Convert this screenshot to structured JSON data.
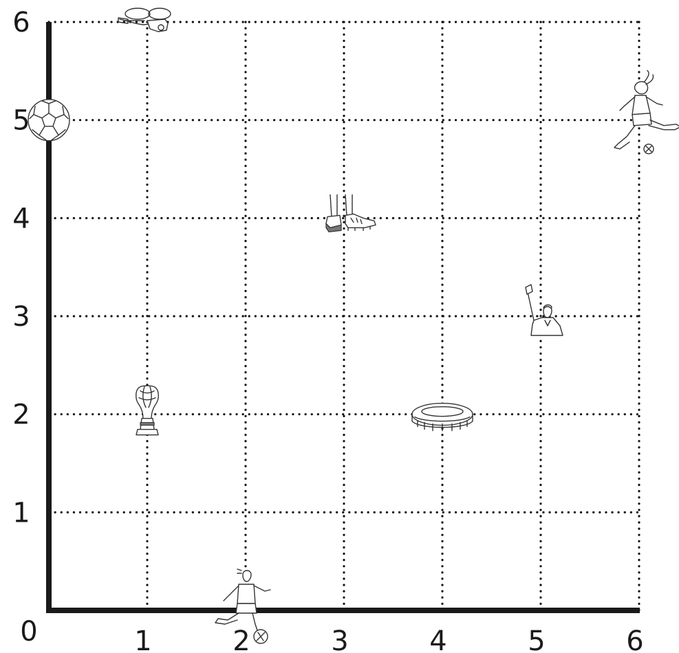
{
  "chart_data": {
    "type": "scatter",
    "title": "",
    "xlabel": "",
    "ylabel": "",
    "xlim": [
      0,
      6
    ],
    "ylim": [
      0,
      6
    ],
    "grid": true,
    "grid_style": "dotted",
    "x_ticks": [
      "0",
      "1",
      "2",
      "3",
      "4",
      "5",
      "6"
    ],
    "y_ticks": [
      "1",
      "2",
      "3",
      "4",
      "5",
      "6"
    ],
    "points": [
      {
        "icon": "whistle-icon",
        "x": 1,
        "y": 6
      },
      {
        "icon": "soccer-ball-icon",
        "x": 0,
        "y": 5
      },
      {
        "icon": "kicking-player-icon",
        "x": 6,
        "y": 5
      },
      {
        "icon": "soccer-cleat-icon",
        "x": 3,
        "y": 4
      },
      {
        "icon": "referee-flag-icon",
        "x": 5,
        "y": 3
      },
      {
        "icon": "world-cup-trophy-icon",
        "x": 1,
        "y": 2
      },
      {
        "icon": "stadium-icon",
        "x": 4,
        "y": 2
      },
      {
        "icon": "dribbling-player-icon",
        "x": 2,
        "y": 0
      }
    ]
  }
}
